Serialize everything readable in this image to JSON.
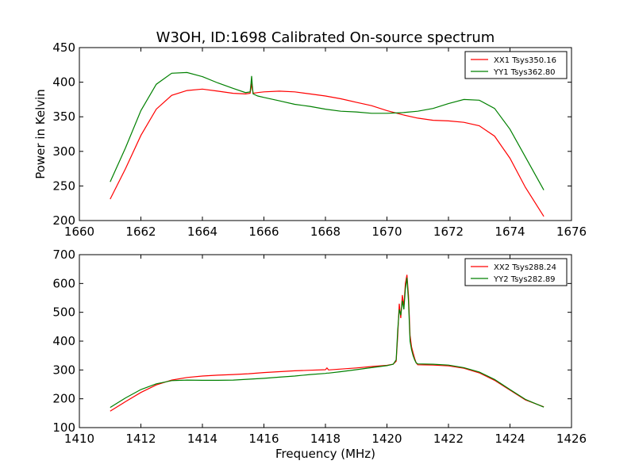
{
  "figure": {
    "title": "W3OH, ID:1698 Calibrated On-source spectrum"
  },
  "chart_data": [
    {
      "type": "line",
      "title": "W3OH, ID:1698 Calibrated On-source spectrum",
      "xlabel": "",
      "ylabel": "Power in Kelvin",
      "xlim": [
        1660,
        1676
      ],
      "ylim": [
        200,
        450
      ],
      "xticks": [
        1660,
        1662,
        1664,
        1666,
        1668,
        1670,
        1672,
        1674,
        1676
      ],
      "yticks": [
        200,
        250,
        300,
        350,
        400,
        450
      ],
      "grid": false,
      "legend_position": "top-right",
      "series": [
        {
          "name": "XX1 Tsys350.16",
          "color": "#ff0000",
          "x": [
            1661.0,
            1661.5,
            1662.0,
            1662.5,
            1663.0,
            1663.5,
            1664.0,
            1664.5,
            1665.0,
            1665.4,
            1665.55,
            1665.58,
            1665.6,
            1665.62,
            1665.65,
            1665.8,
            1666.0,
            1666.5,
            1667.0,
            1667.5,
            1668.0,
            1668.5,
            1669.0,
            1669.5,
            1670.0,
            1670.5,
            1671.0,
            1671.5,
            1672.0,
            1672.5,
            1673.0,
            1673.5,
            1674.0,
            1674.5,
            1675.1
          ],
          "y": [
            231,
            275,
            323,
            361,
            381,
            388,
            390,
            387,
            384,
            383,
            384,
            392,
            398,
            391,
            384,
            385,
            386,
            387,
            386,
            383,
            380,
            376,
            371,
            366,
            359,
            353,
            348,
            345,
            344,
            342,
            337,
            322,
            290,
            248,
            206
          ]
        },
        {
          "name": "YY1 Tsys362.80",
          "color": "#008000",
          "x": [
            1661.0,
            1661.5,
            1662.0,
            1662.5,
            1663.0,
            1663.5,
            1664.0,
            1664.5,
            1665.0,
            1665.4,
            1665.55,
            1665.58,
            1665.6,
            1665.62,
            1665.65,
            1665.8,
            1666.0,
            1666.5,
            1667.0,
            1667.5,
            1668.0,
            1668.5,
            1669.0,
            1669.5,
            1670.0,
            1670.5,
            1671.0,
            1671.5,
            1672.0,
            1672.5,
            1673.0,
            1673.5,
            1674.0,
            1674.5,
            1675.1
          ],
          "y": [
            256,
            305,
            359,
            397,
            413,
            414,
            408,
            399,
            391,
            385,
            386,
            398,
            409,
            396,
            383,
            380,
            378,
            373,
            368,
            365,
            361,
            358,
            357,
            355,
            355,
            356,
            358,
            362,
            369,
            375,
            374,
            362,
            332,
            292,
            244
          ]
        }
      ]
    },
    {
      "type": "line",
      "title": "",
      "xlabel": "Frequency (MHz)",
      "ylabel": "",
      "xlim": [
        1410,
        1426
      ],
      "ylim": [
        100,
        700
      ],
      "xticks": [
        1410,
        1412,
        1414,
        1416,
        1418,
        1420,
        1422,
        1424,
        1426
      ],
      "yticks": [
        100,
        200,
        300,
        400,
        500,
        600,
        700
      ],
      "grid": false,
      "legend_position": "top-right",
      "series": [
        {
          "name": "XX2 Tsys288.24",
          "color": "#ff0000",
          "x": [
            1411.0,
            1411.5,
            1412.0,
            1412.5,
            1413.0,
            1413.5,
            1414.0,
            1414.5,
            1415.0,
            1415.5,
            1416.0,
            1416.5,
            1417.0,
            1417.5,
            1418.0,
            1418.05,
            1418.1,
            1418.5,
            1419.0,
            1419.5,
            1420.0,
            1420.2,
            1420.3,
            1420.35,
            1420.4,
            1420.45,
            1420.5,
            1420.55,
            1420.6,
            1420.65,
            1420.7,
            1420.75,
            1420.8,
            1420.85,
            1420.9,
            1420.95,
            1421.0,
            1421.5,
            1422.0,
            1422.5,
            1423.0,
            1423.5,
            1424.0,
            1424.5,
            1425.1
          ],
          "y": [
            157,
            190,
            222,
            248,
            265,
            274,
            279,
            282,
            284,
            287,
            291,
            294,
            297,
            299,
            301,
            307,
            300,
            303,
            307,
            312,
            316,
            320,
            330,
            420,
            530,
            480,
            560,
            520,
            600,
            630,
            560,
            420,
            380,
            360,
            340,
            325,
            318,
            317,
            314,
            306,
            290,
            264,
            230,
            196,
            172
          ]
        },
        {
          "name": "YY2 Tsys282.89",
          "color": "#008000",
          "x": [
            1411.0,
            1411.5,
            1412.0,
            1412.5,
            1413.0,
            1413.5,
            1414.0,
            1414.5,
            1415.0,
            1415.5,
            1416.0,
            1416.5,
            1417.0,
            1417.5,
            1418.0,
            1418.05,
            1418.1,
            1418.5,
            1419.0,
            1419.5,
            1420.0,
            1420.2,
            1420.3,
            1420.35,
            1420.4,
            1420.45,
            1420.5,
            1420.55,
            1420.6,
            1420.65,
            1420.7,
            1420.75,
            1420.8,
            1420.85,
            1420.9,
            1420.95,
            1421.0,
            1421.5,
            1422.0,
            1422.5,
            1423.0,
            1423.5,
            1424.0,
            1424.5,
            1425.1
          ],
          "y": [
            170,
            203,
            232,
            252,
            263,
            265,
            264,
            264,
            265,
            268,
            271,
            275,
            279,
            284,
            288,
            289,
            289,
            294,
            301,
            308,
            315,
            320,
            335,
            440,
            510,
            490,
            540,
            510,
            580,
            620,
            540,
            400,
            370,
            350,
            335,
            325,
            321,
            320,
            317,
            308,
            293,
            267,
            232,
            198,
            171
          ]
        }
      ]
    }
  ]
}
